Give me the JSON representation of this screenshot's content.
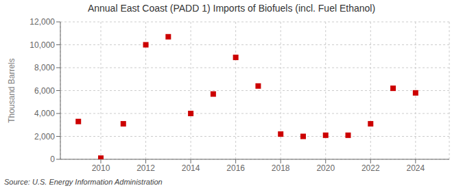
{
  "chart_data": {
    "type": "scatter",
    "title": "Annual East Coast (PADD 1) Imports of Biofuels (incl. Fuel Ethanol)",
    "ylabel": "Thousand Barrels",
    "source": "Source: U.S. Energy Information Administration",
    "x": [
      2009,
      2010,
      2011,
      2012,
      2013,
      2014,
      2015,
      2016,
      2017,
      2018,
      2019,
      2020,
      2021,
      2022,
      2023,
      2024
    ],
    "values": [
      3300,
      100,
      3100,
      10000,
      10700,
      4000,
      5700,
      8900,
      6400,
      2200,
      2000,
      2100,
      2100,
      3100,
      6200,
      5800
    ],
    "color": "#cc0000",
    "marker": "square",
    "xlim": [
      2008.2,
      2025.5
    ],
    "xticks": [
      2010,
      2012,
      2014,
      2016,
      2018,
      2020,
      2022,
      2024
    ],
    "ylim": [
      0,
      12000
    ],
    "yticks": [
      0,
      {
        "value": 2000,
        "label": "2,000"
      },
      {
        "value": 4000,
        "label": "4,000"
      },
      {
        "value": 6000,
        "label": "6,000"
      },
      {
        "value": 8000,
        "label": "8,000"
      },
      {
        "value": 10000,
        "label": "10,000"
      },
      {
        "value": 12000,
        "label": "12,000"
      }
    ],
    "grid": true
  }
}
